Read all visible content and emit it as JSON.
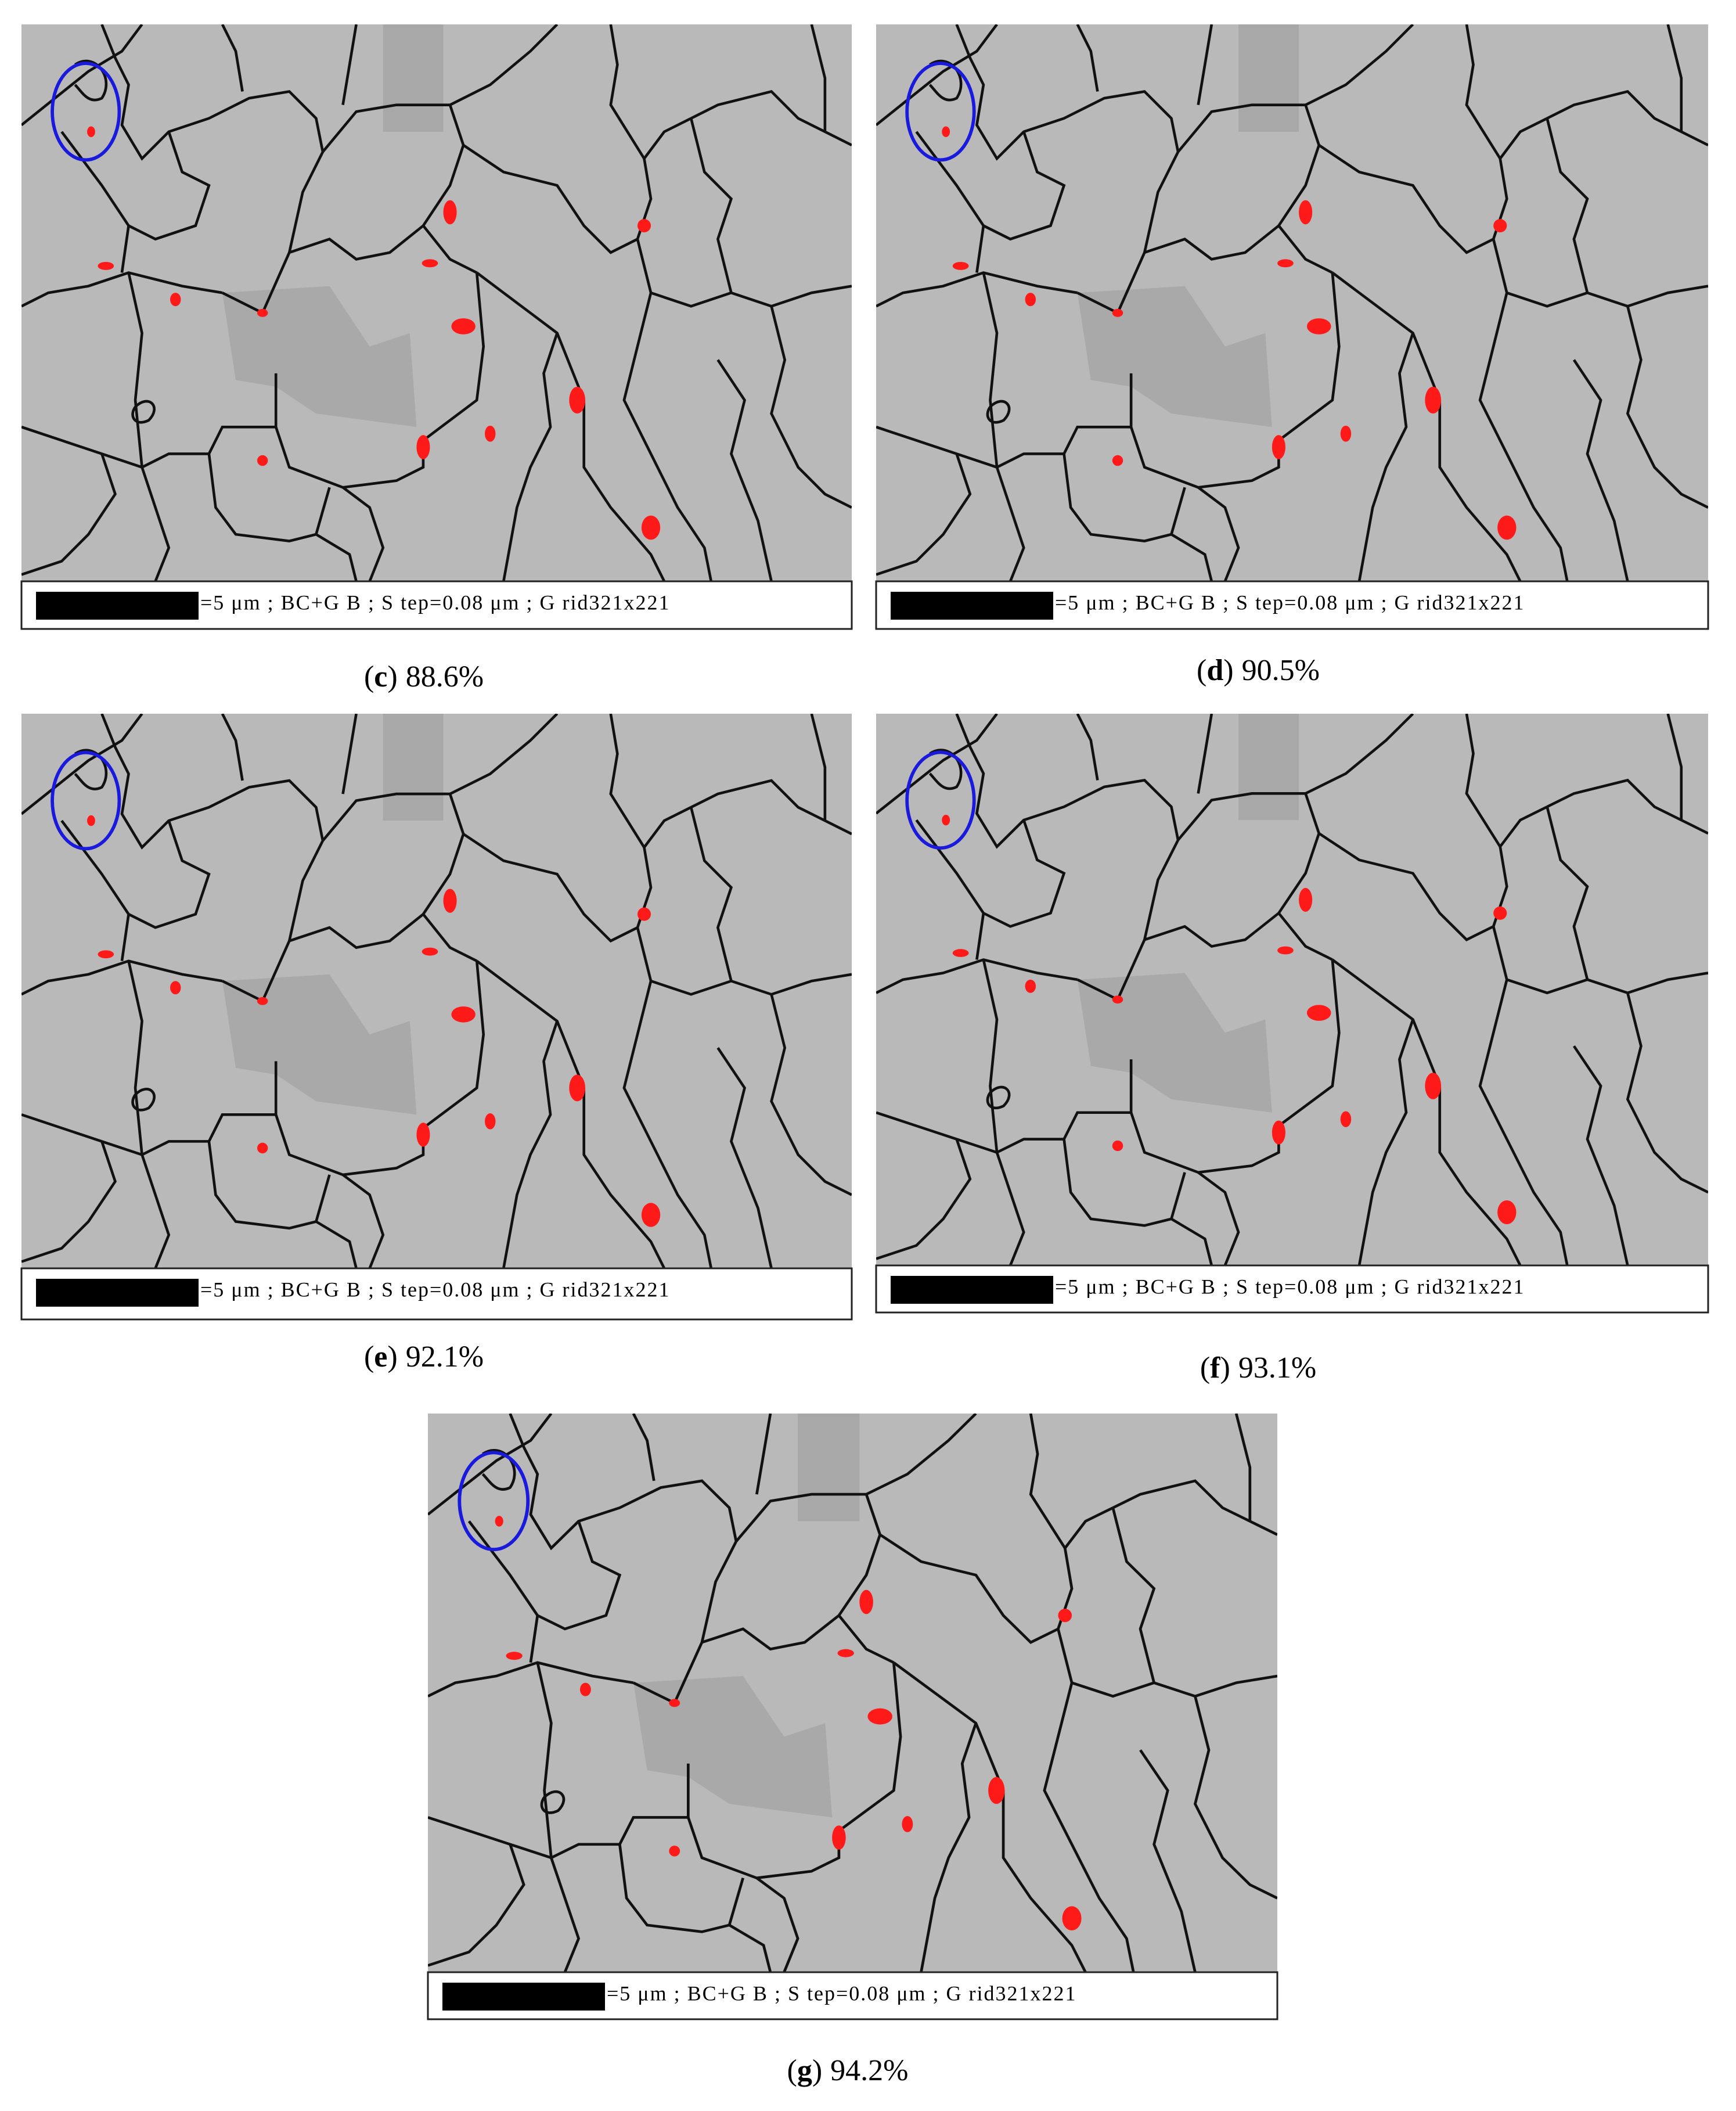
{
  "panels": [
    {
      "open": "(",
      "letter": "c",
      "close": ")",
      "percent": "88.6%",
      "scale_text": "=5 μm ; BC+G B ; S tep=0.08 μm ; G rid321x221"
    },
    {
      "open": "(",
      "letter": "d",
      "close": ")",
      "percent": "90.5%",
      "scale_text": "=5 μm ; BC+G B ; S tep=0.08 μm ; G rid321x221"
    },
    {
      "open": "(",
      "letter": "e",
      "close": ")",
      "percent": "92.1%",
      "scale_text": "=5 μm ; BC+G B ; S tep=0.08 μm ; G rid321x221"
    },
    {
      "open": "(",
      "letter": "f",
      "close": ")",
      "percent": "93.1%",
      "scale_text": "=5 μm ; BC+G B ; S tep=0.08 μm ; G rid321x221"
    },
    {
      "open": "(",
      "letter": "g",
      "close": ")",
      "percent": "94.2%",
      "scale_text": "=5 μm ; BC+G B ; S tep=0.08 μm ; G rid321x221"
    }
  ]
}
